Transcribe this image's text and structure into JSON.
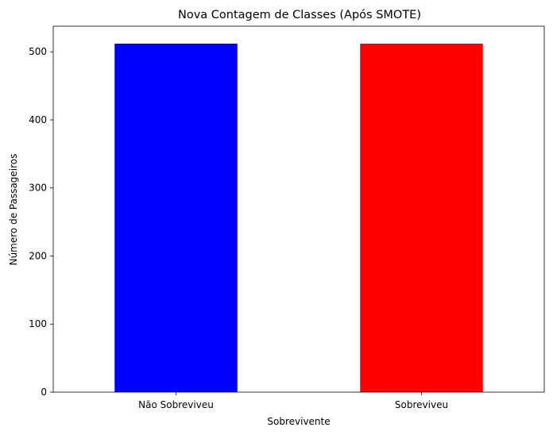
{
  "chart_data": {
    "type": "bar",
    "title": "Nova Contagem de Classes (Após SMOTE)",
    "xlabel": "Sobrevivente",
    "ylabel": "Número de Passageiros",
    "categories": [
      "Não Sobreviveu",
      "Sobreviveu"
    ],
    "values": [
      512,
      512
    ],
    "colors": [
      "#0000ff",
      "#ff0000"
    ],
    "ylim": [
      0,
      537.6
    ],
    "yticks": [
      0,
      100,
      200,
      300,
      400,
      500
    ],
    "grid": false,
    "legend": "none"
  }
}
